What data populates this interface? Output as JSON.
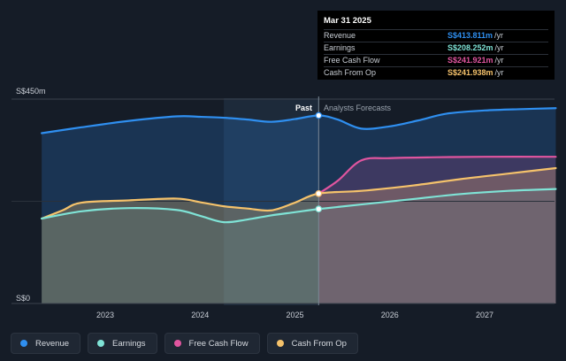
{
  "chart_data": {
    "type": "line",
    "y_top_label": "S$450m",
    "y_bottom_label": "S$0",
    "ylim": [
      0,
      450
    ],
    "xlim": [
      2022.3,
      2027.75
    ],
    "x_ticks": [
      "2023",
      "2024",
      "2025",
      "2026",
      "2027"
    ],
    "x_tick_values": [
      2023,
      2024,
      2025,
      2026,
      2027
    ],
    "divider_x": 2025.25,
    "past_start_x": 2024.25,
    "past_label": "Past",
    "forecast_label": "Analysts Forecasts",
    "colors": {
      "revenue": "#2f8ff0",
      "earnings": "#7fe3d6",
      "free_cash_flow": "#e0559f",
      "cash_from_op": "#f5c26b"
    },
    "series": [
      {
        "key": "revenue",
        "name": "Revenue",
        "color": "#2f8ff0",
        "x": [
          2022.33,
          2022.75,
          2023.25,
          2023.75,
          2024.0,
          2024.25,
          2024.5,
          2024.75,
          2025.0,
          2025.25,
          2025.45,
          2025.7,
          2026.0,
          2026.3,
          2026.6,
          2027.0,
          2027.4,
          2027.75
        ],
        "values": [
          375,
          388,
          402,
          412,
          411,
          409,
          405,
          400,
          406,
          414,
          405,
          385,
          390,
          403,
          418,
          425,
          428,
          430
        ]
      },
      {
        "key": "earnings",
        "name": "Earnings",
        "color": "#7fe3d6",
        "x": [
          2022.33,
          2022.75,
          2023.25,
          2023.75,
          2024.0,
          2024.25,
          2024.5,
          2024.75,
          2025.0,
          2025.25,
          2025.7,
          2026.25,
          2026.75,
          2027.25,
          2027.75
        ],
        "values": [
          187,
          203,
          210,
          206,
          193,
          179,
          185,
          194,
          201,
          208,
          218,
          230,
          241,
          248,
          252
        ]
      },
      {
        "key": "free_cash_flow",
        "name": "Free Cash Flow",
        "color": "#e0559f",
        "x": [
          2025.25,
          2025.45,
          2025.7,
          2026.0,
          2026.5,
          2027.0,
          2027.75
        ],
        "values": [
          242,
          270,
          315,
          320,
          322,
          323,
          323
        ]
      },
      {
        "key": "cash_from_op",
        "name": "Cash From Op",
        "color": "#f5c26b",
        "x": [
          2022.33,
          2022.55,
          2022.75,
          2023.25,
          2023.75,
          2024.0,
          2024.25,
          2024.5,
          2024.75,
          2025.0,
          2025.25,
          2025.7,
          2026.25,
          2026.75,
          2027.25,
          2027.75
        ],
        "values": [
          187,
          205,
          222,
          227,
          231,
          223,
          214,
          209,
          205,
          222,
          242,
          248,
          260,
          274,
          286,
          298
        ]
      }
    ]
  },
  "tooltip": {
    "date": "Mar 31 2025",
    "rows": [
      {
        "label": "Revenue",
        "value": "S$413.811m",
        "unit": "/yr",
        "color": "#2f8ff0"
      },
      {
        "label": "Earnings",
        "value": "S$208.252m",
        "unit": "/yr",
        "color": "#7fe3d6"
      },
      {
        "label": "Free Cash Flow",
        "value": "S$241.921m",
        "unit": "/yr",
        "color": "#e0559f"
      },
      {
        "label": "Cash From Op",
        "value": "S$241.938m",
        "unit": "/yr",
        "color": "#f5c26b"
      }
    ]
  },
  "legend": [
    {
      "label": "Revenue",
      "color": "#2f8ff0"
    },
    {
      "label": "Earnings",
      "color": "#7fe3d6"
    },
    {
      "label": "Free Cash Flow",
      "color": "#e0559f"
    },
    {
      "label": "Cash From Op",
      "color": "#f5c26b"
    }
  ]
}
